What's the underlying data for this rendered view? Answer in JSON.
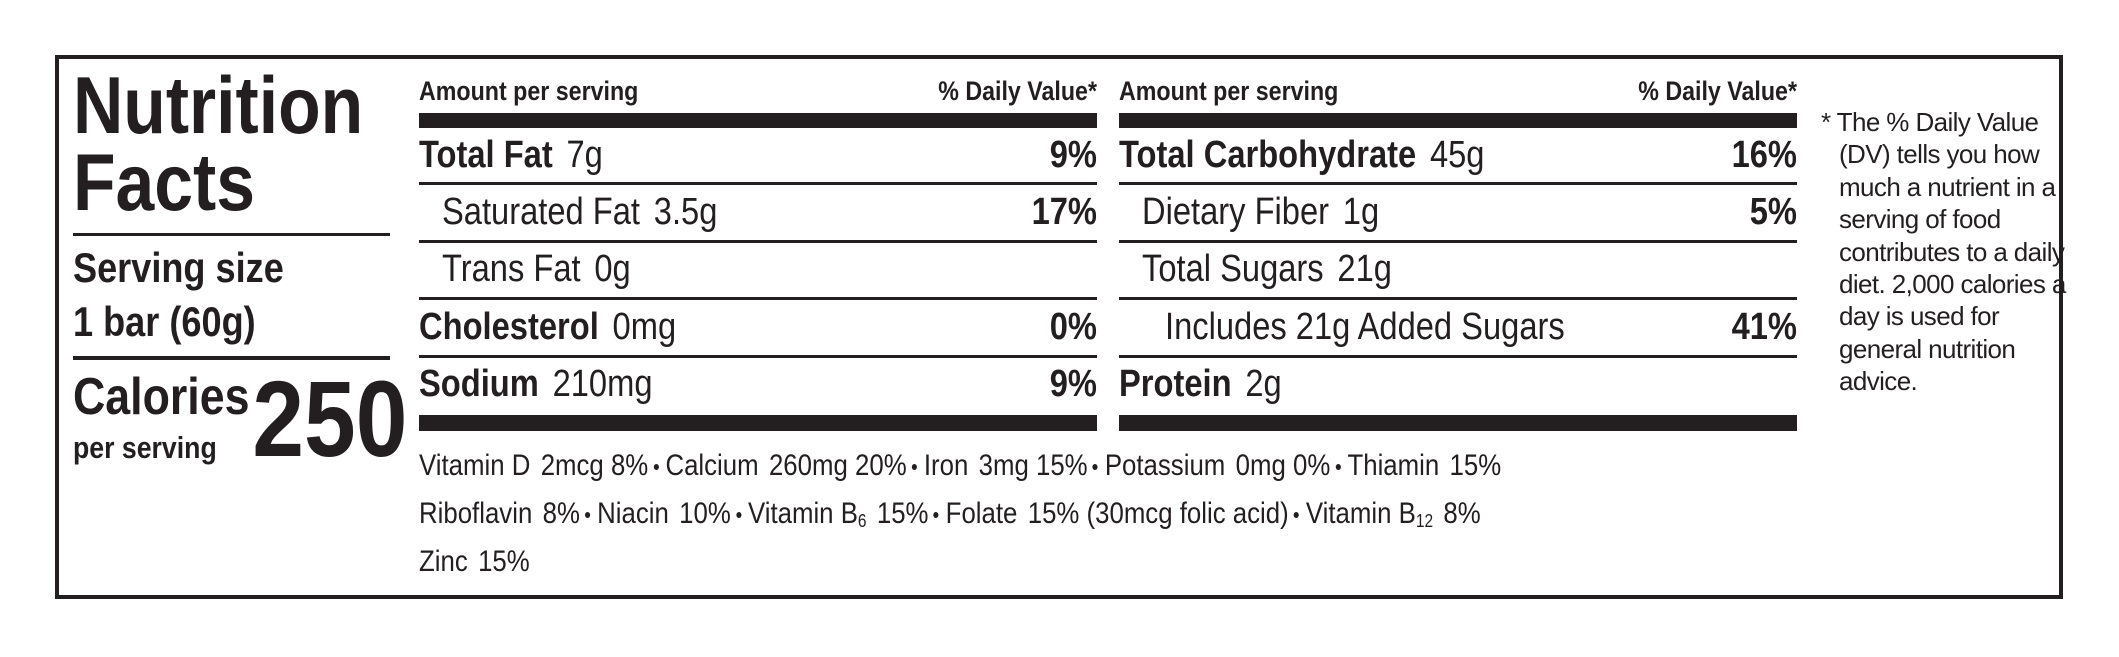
{
  "title": "Nutrition Facts",
  "serving": {
    "label": "Serving size",
    "amount": "1 bar (60g)"
  },
  "calories": {
    "label": "Calories",
    "sublabel": "per serving",
    "value": "250"
  },
  "columns": [
    {
      "header": {
        "amount": "Amount per serving",
        "dv": "% Daily Value*"
      },
      "rows": [
        {
          "name": "Total Fat",
          "amount": "7g",
          "dv": "9%",
          "bold": true,
          "indent": 0
        },
        {
          "name": "Saturated Fat",
          "amount": "3.5g",
          "dv": "17%",
          "bold": false,
          "indent": 1
        },
        {
          "name": "Trans Fat",
          "amount": "0g",
          "bold": false,
          "indent": 1
        },
        {
          "name": "Cholesterol",
          "amount": "0mg",
          "dv": "0%",
          "bold": true,
          "indent": 0
        },
        {
          "name": "Sodium",
          "amount": "210mg",
          "dv": "9%",
          "bold": true,
          "indent": 0
        }
      ]
    },
    {
      "header": {
        "amount": "Amount per serving",
        "dv": "% Daily Value*"
      },
      "rows": [
        {
          "name": "Total Carbohydrate",
          "amount": "45g",
          "dv": "16%",
          "bold": true,
          "indent": 0
        },
        {
          "name": "Dietary Fiber",
          "amount": "1g",
          "dv": "5%",
          "bold": false,
          "indent": 1
        },
        {
          "name": "Total Sugars",
          "amount": "21g",
          "bold": false,
          "indent": 1
        },
        {
          "name": "Includes 21g Added Sugars",
          "dv": "41%",
          "bold": false,
          "indent": 2
        },
        {
          "name": "Protein",
          "amount": "2g",
          "bold": true,
          "indent": 0
        }
      ]
    }
  ],
  "vitamins": [
    [
      {
        "name": "Vitamin D",
        "value": "2mcg 8%"
      },
      {
        "name": "Calcium",
        "value": "260mg 20%"
      },
      {
        "name": "Iron",
        "value": "3mg 15%"
      },
      {
        "name": "Potassium",
        "value": "0mg 0%"
      },
      {
        "name": "Thiamin",
        "value": "15%"
      }
    ],
    [
      {
        "name": "Riboflavin",
        "value": "8%"
      },
      {
        "name": "Niacin",
        "value": "10%"
      },
      {
        "name": "Vitamin B",
        "sub": "6",
        "value": "15%"
      },
      {
        "name": "Folate",
        "value": "15% (30mcg folic acid)"
      },
      {
        "name": "Vitamin B",
        "sub": "12",
        "value": "8%"
      }
    ],
    [
      {
        "name": "Zinc",
        "value": "15%"
      }
    ]
  ],
  "footnote": "* The % Daily Value (DV) tells you how much a nutrient in a serving of food contributes to a daily diet. 2,000 calories a day is used for general nutrition advice."
}
